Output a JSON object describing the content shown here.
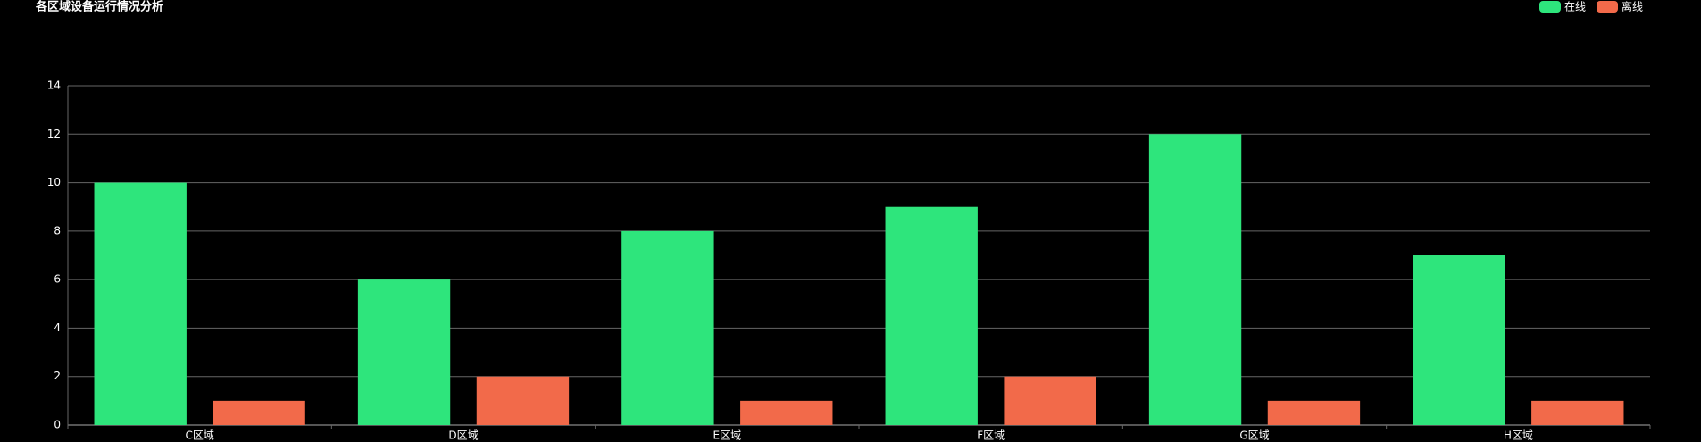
{
  "chart_data": {
    "type": "bar",
    "title": "各区域设备运行情况分析",
    "categories": [
      "C区域",
      "D区域",
      "E区域",
      "F区域",
      "G区域",
      "H区域"
    ],
    "series": [
      {
        "name": "在线",
        "color": "#2ee57c",
        "values": [
          10,
          6,
          8,
          9,
          12,
          7
        ]
      },
      {
        "name": "离线",
        "color": "#f26a4a",
        "values": [
          1,
          2,
          1,
          2,
          1,
          1
        ]
      }
    ],
    "ylim": [
      0,
      14
    ],
    "yticks": [
      0,
      2,
      4,
      6,
      8,
      10,
      12,
      14
    ],
    "grid": true,
    "legend": "top-right"
  }
}
